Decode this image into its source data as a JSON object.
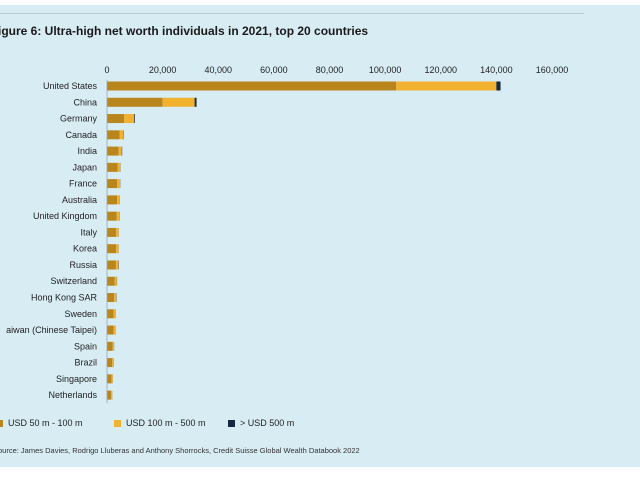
{
  "title": "igure 6: Ultra-high net worth individuals in 2021, top 20 countries",
  "source": "ource: James Davies, Rodrigo Lluberas and Anthony Shorrocks, Credit Suisse Global Wealth Databook 2022",
  "colors": {
    "background": "#d8ecf3",
    "usd_50_100": "#b8861c",
    "usd_100_500": "#f2b230",
    "usd_500_plus": "#16283f"
  },
  "legend": [
    {
      "label": "USD 50 m - 100 m",
      "color": "#b8861c"
    },
    {
      "label": "USD 100 m - 500 m",
      "color": "#f2b230"
    },
    {
      "label": "> USD 500 m",
      "color": "#16283f"
    }
  ],
  "chart_data": {
    "type": "bar",
    "orientation": "horizontal",
    "stacked": true,
    "title": "igure 6: Ultra-high net worth individuals in 2021, top 20 countries",
    "xlim": [
      0,
      160000
    ],
    "x_ticks": [
      0,
      20000,
      40000,
      60000,
      80000,
      100000,
      120000,
      140000,
      160000
    ],
    "x_tick_labels": [
      "0",
      "20,000",
      "40,000",
      "60,000",
      "80,000",
      "100,000",
      "120,000",
      "140,000",
      "160,000"
    ],
    "x_axis_position": "top",
    "grid": false,
    "legend_position": "bottom-left",
    "categories": [
      "United States",
      "China",
      "Germany",
      "Canada",
      "India",
      "Japan",
      "France",
      "Australia",
      "United Kingdom",
      "Italy",
      "Korea",
      "Russia",
      "Switzerland",
      "Hong Kong SAR",
      "Sweden",
      "aiwan (Chinese Taipei)",
      "Spain",
      "Brazil",
      "Singapore",
      "Netherlands"
    ],
    "series": [
      {
        "name": "USD 50 m - 100 m",
        "color": "#b8861c",
        "values": [
          104000,
          20000,
          6200,
          4500,
          4200,
          3800,
          3700,
          3600,
          3500,
          3300,
          3300,
          3200,
          2800,
          2600,
          2400,
          2400,
          2000,
          1900,
          1600,
          1500
        ]
      },
      {
        "name": "USD 100 m - 500 m",
        "color": "#f2b230",
        "values": [
          36000,
          11500,
          3600,
          1400,
          1100,
          1000,
          1000,
          950,
          950,
          850,
          850,
          900,
          750,
          750,
          650,
          650,
          550,
          500,
          450,
          400
        ]
      },
      {
        "name": "> USD 500 m",
        "color": "#16283f",
        "values": [
          1500,
          700,
          250,
          120,
          150,
          60,
          70,
          50,
          80,
          50,
          40,
          120,
          70,
          90,
          50,
          40,
          30,
          40,
          30,
          20
        ]
      }
    ]
  }
}
